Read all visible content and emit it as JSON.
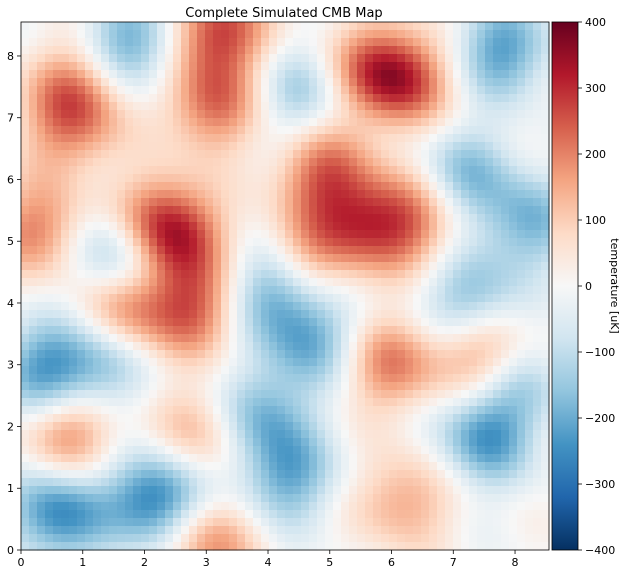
{
  "chart_data": {
    "type": "heatmap",
    "title": "Complete Simulated CMB Map",
    "xlabel": "",
    "ylabel": "",
    "xlim": [
      0,
      8.55
    ],
    "ylim": [
      0,
      8.55
    ],
    "xticks": [
      "0",
      "1",
      "2",
      "3",
      "4",
      "5",
      "6",
      "7",
      "8"
    ],
    "yticks": [
      "0",
      "1",
      "2",
      "3",
      "4",
      "5",
      "6",
      "7",
      "8"
    ],
    "colorbar": {
      "label": "temperature [uK]",
      "range": [
        -400,
        400
      ],
      "ticks": [
        "400",
        "300",
        "200",
        "100",
        "0",
        "−100",
        "−200",
        "−300",
        "−400"
      ],
      "colormap": "RdBu_r",
      "stops": [
        "#053061",
        "#2166ac",
        "#4393c3",
        "#92c5de",
        "#d1e5f0",
        "#f7f7f7",
        "#fddbc7",
        "#f4a582",
        "#d6604d",
        "#b2182b",
        "#67001f"
      ]
    },
    "hotspots": [
      {
        "x": 0.9,
        "y": 7.5,
        "t": 180
      },
      {
        "x": 0.8,
        "y": 6.8,
        "t": 160
      },
      {
        "x": 3.1,
        "y": 7.2,
        "t": 220
      },
      {
        "x": 3.2,
        "y": 8.4,
        "t": 280
      },
      {
        "x": 4.9,
        "y": 6.1,
        "t": 220
      },
      {
        "x": 5.5,
        "y": 5.3,
        "t": 200
      },
      {
        "x": 5.7,
        "y": 7.8,
        "t": 180
      },
      {
        "x": 6.2,
        "y": 7.6,
        "t": 240
      },
      {
        "x": 6.3,
        "y": 5.3,
        "t": 200
      },
      {
        "x": 2.2,
        "y": 5.3,
        "t": 240
      },
      {
        "x": 2.6,
        "y": 5.0,
        "t": 180
      },
      {
        "x": 0.3,
        "y": 5.2,
        "t": 200
      },
      {
        "x": 1.7,
        "y": 3.9,
        "t": 200
      },
      {
        "x": 2.8,
        "y": 3.9,
        "t": 220
      },
      {
        "x": 4.6,
        "y": 4.7,
        "t": 160
      },
      {
        "x": 6.0,
        "y": 3.0,
        "t": 200
      },
      {
        "x": 7.5,
        "y": 3.2,
        "t": 220
      },
      {
        "x": 0.8,
        "y": 1.9,
        "t": 200
      },
      {
        "x": 3.0,
        "y": 0.1,
        "t": 200
      },
      {
        "x": 6.2,
        "y": 0.8,
        "t": 160
      },
      {
        "x": 2.9,
        "y": 1.9,
        "t": 140
      }
    ],
    "coldspots": [
      {
        "x": 1.8,
        "y": 8.2,
        "t": -220
      },
      {
        "x": 7.8,
        "y": 8.1,
        "t": -220
      },
      {
        "x": 1.6,
        "y": 4.8,
        "t": -220
      },
      {
        "x": 4.1,
        "y": 4.2,
        "t": -220
      },
      {
        "x": 7.3,
        "y": 4.0,
        "t": -200
      },
      {
        "x": 0.4,
        "y": 2.9,
        "t": -220
      },
      {
        "x": 4.7,
        "y": 3.4,
        "t": -180
      },
      {
        "x": 2.2,
        "y": 0.8,
        "t": -300
      },
      {
        "x": 0.6,
        "y": 0.6,
        "t": -260
      },
      {
        "x": 4.3,
        "y": 1.2,
        "t": -200
      },
      {
        "x": 7.5,
        "y": 1.8,
        "t": -220
      },
      {
        "x": 3.9,
        "y": 2.2,
        "t": -180
      },
      {
        "x": 8.2,
        "y": 5.3,
        "t": -180
      },
      {
        "x": 4.5,
        "y": 7.4,
        "t": -140
      },
      {
        "x": 7.2,
        "y": 6.1,
        "t": -160
      },
      {
        "x": 1.3,
        "y": 3.0,
        "t": -160
      },
      {
        "x": 8.0,
        "y": 2.7,
        "t": -140
      }
    ]
  }
}
